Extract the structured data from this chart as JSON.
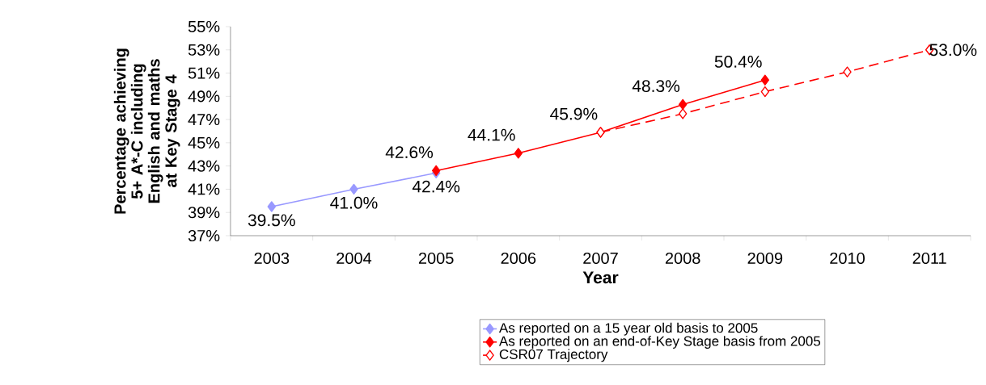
{
  "chart_data": {
    "type": "line",
    "ylabel": "Percentage achieving 5+ A*-C including English and maths at Key Stage 4",
    "xlabel": "Year",
    "categories": [
      "2003",
      "2004",
      "2005",
      "2006",
      "2007",
      "2008",
      "2009",
      "2010",
      "2011"
    ],
    "ylim": [
      37,
      55
    ],
    "yticks": [
      {
        "value": 37,
        "label": "37%"
      },
      {
        "value": 39,
        "label": "39%"
      },
      {
        "value": 41,
        "label": "41%"
      },
      {
        "value": 43,
        "label": "43%"
      },
      {
        "value": 45,
        "label": "45%"
      },
      {
        "value": 47,
        "label": "47%"
      },
      {
        "value": 49,
        "label": "49%"
      },
      {
        "value": 51,
        "label": "51%"
      },
      {
        "value": 53,
        "label": "53%"
      },
      {
        "value": 55,
        "label": "55%"
      }
    ],
    "series": [
      {
        "name": "As reported on a 15 year old basis to 2005",
        "color": "#9999ff",
        "line_style": "solid",
        "values": [
          39.5,
          41.0,
          42.4,
          null,
          null,
          null,
          null,
          null,
          null
        ],
        "value_labels": [
          "39.5%",
          "41.0%",
          "42.4%",
          null,
          null,
          null,
          null,
          null,
          null
        ]
      },
      {
        "name": "As reported on an end-of-Key Stage basis from 2005",
        "color": "#ff0000",
        "line_style": "solid",
        "values": [
          null,
          null,
          42.6,
          44.1,
          45.9,
          48.3,
          50.4,
          null,
          null
        ],
        "value_labels": [
          null,
          null,
          "42.6%",
          "44.1%",
          "45.9%",
          "48.3%",
          "50.4%",
          null,
          null
        ]
      },
      {
        "name": "CSR07 Trajectory",
        "color": "#ff0000",
        "line_style": "dashed",
        "values": [
          null,
          null,
          null,
          null,
          45.9,
          47.5,
          49.4,
          51.1,
          53.0
        ],
        "value_labels": [
          null,
          null,
          null,
          null,
          null,
          null,
          null,
          null,
          "53.0%"
        ]
      }
    ],
    "marker": "diamond",
    "grid": false,
    "legend": "bottom"
  }
}
